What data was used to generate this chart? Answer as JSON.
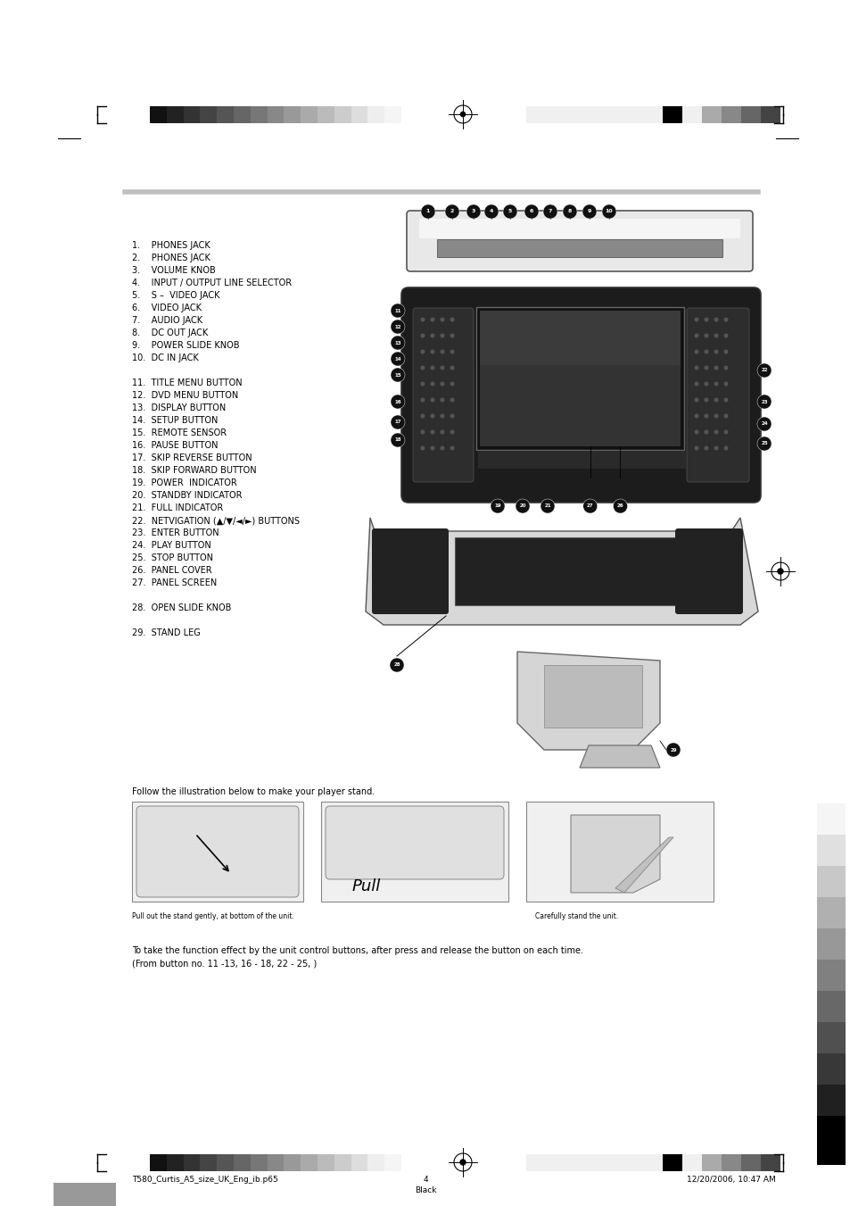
{
  "bg_color": "#ffffff",
  "page_width": 9.54,
  "page_height": 13.51,
  "header_bar_colors_left": [
    "#111111",
    "#222222",
    "#333333",
    "#444444",
    "#555555",
    "#666666",
    "#777777",
    "#888888",
    "#999999",
    "#aaaaaa",
    "#bbbbbb",
    "#cccccc",
    "#dddddd",
    "#eeeeee",
    "#f5f5f5"
  ],
  "header_bar_colors_right": [
    "#f0f0f0",
    "#f0f0f0",
    "#f0f0f0",
    "#f0f0f0",
    "#f0f0f0",
    "#f0f0f0",
    "#f0f0f0",
    "#000000",
    "#f0f0f0",
    "#aaaaaa",
    "#888888",
    "#666666",
    "#444444"
  ],
  "list_items_col1": [
    "1.    PHONES JACK",
    "2.    PHONES JACK",
    "3.    VOLUME KNOB",
    "4.    INPUT / OUTPUT LINE SELECTOR",
    "5.    S –  VIDEO JACK",
    "6.    VIDEO JACK",
    "7.    AUDIO JACK",
    "8.    DC OUT JACK",
    "9.    POWER SLIDE KNOB",
    "10.  DC IN JACK"
  ],
  "list_items_col2": [
    "11.  TITLE MENU BUTTON",
    "12.  DVD MENU BUTTON",
    "13.  DISPLAY BUTTON",
    "14.  SETUP BUTTON",
    "15.  REMOTE SENSOR",
    "16.  PAUSE BUTTON",
    "17.  SKIP REVERSE BUTTON",
    "18.  SKIP FORWARD BUTTON",
    "19.  POWER  INDICATOR",
    "20.  STANDBY INDICATOR",
    "21.  FULL INDICATOR",
    "22.  NETVIGATION (▲/▼/◄/►) BUTTONS",
    "23.  ENTER BUTTON",
    "24.  PLAY BUTTON",
    "25.  STOP BUTTON",
    "26.  PANEL COVER",
    "27.  PANEL SCREEN"
  ],
  "list_item_28": "28.  OPEN SLIDE KNOB",
  "list_item_29": "29.  STAND LEG",
  "follow_text": "Follow the illustration below to make your player stand.",
  "pull_text": "Pull",
  "pull_out_text": "Pull out the stand gently, at bottom of the unit.",
  "carefully_text": "Carefully stand the unit.",
  "bottom_text1": "To take the function effect by the unit control buttons, after press and release the button on each time.",
  "bottom_text2": "(From button no. 11 -13, 16 - 18, 22 - 25, )",
  "footer_left": "T580_Curtis_A5_size_UK_Eng_ib.p65",
  "footer_center": "4",
  "footer_date": "12/20/2006, 10:47 AM",
  "footer_black": "Black",
  "separator_color": "#c0c0c0",
  "text_color": "#000000",
  "font_size_list": 7.0,
  "font_size_footer": 6.5
}
